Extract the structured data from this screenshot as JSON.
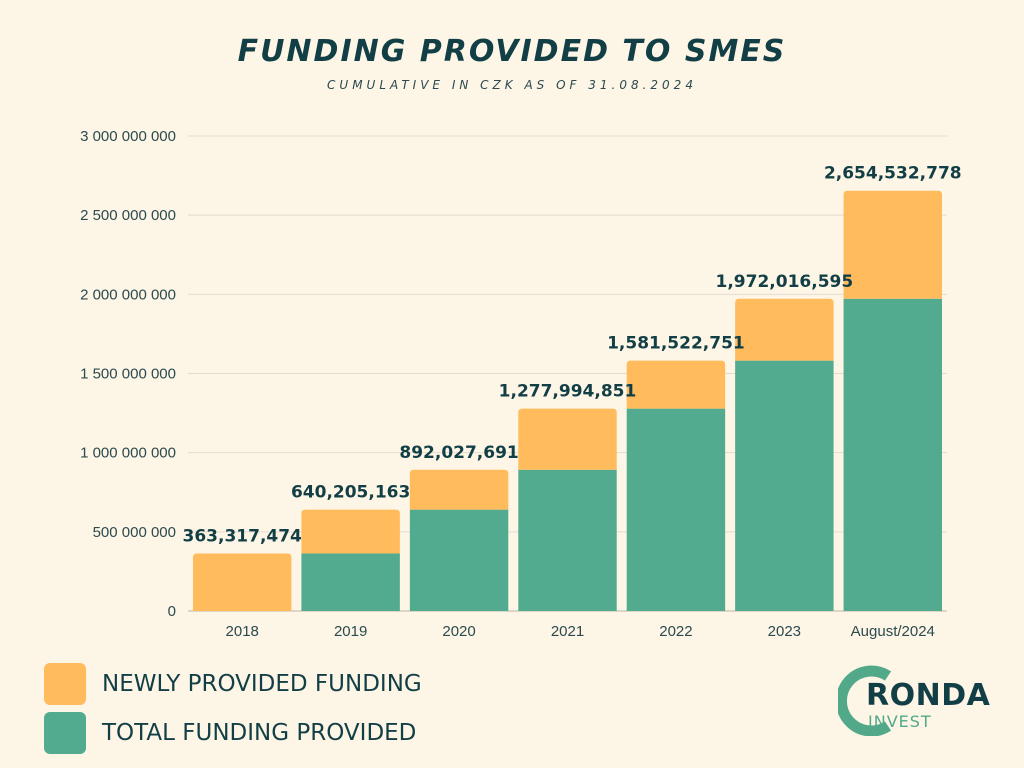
{
  "chart_data": {
    "type": "bar",
    "stacked": true,
    "title": "FUNDING PROVIDED TO SMES",
    "subtitle": "CUMULATIVE IN CZK AS OF 31.08.2024",
    "categories": [
      "2018",
      "2019",
      "2020",
      "2021",
      "2022",
      "2023",
      "August/2024"
    ],
    "series": [
      {
        "name": "TOTAL FUNDING PROVIDED",
        "color": "#52ab8e",
        "values": [
          0,
          363317474,
          640205163,
          892027691,
          1277994851,
          1581522751,
          1972016595
        ]
      },
      {
        "name": "NEWLY PROVIDED FUNDING",
        "color": "#ffbb5c",
        "values": [
          363317474,
          276887689,
          251822528,
          385967160,
          303527900,
          390493844,
          682516183
        ]
      }
    ],
    "total_labels": [
      "363,317,474",
      "640,205,163",
      "892,027,691",
      "1,277,994,851",
      "1,581,522,751",
      "1,972,016,595",
      "2,654,532,778"
    ],
    "yticks": [
      0,
      500000000,
      1000000000,
      1500000000,
      2000000000,
      2500000000,
      3000000000
    ],
    "ytick_labels": [
      "0",
      "500 000 000",
      "1 000 000 000",
      "1 500 000 000",
      "2 000 000 000",
      "2 500 000 000",
      "3 000 000 000"
    ],
    "ylim": [
      0,
      3000000000
    ],
    "grid": true,
    "legend_position": "bottom-left"
  },
  "legend": [
    {
      "label": "NEWLY PROVIDED FUNDING",
      "color": "#ffbb5c"
    },
    {
      "label": "TOTAL FUNDING PROVIDED",
      "color": "#52ab8e"
    }
  ],
  "logo": {
    "name": "RONDA",
    "sub": "INVEST",
    "colors": {
      "ring": "#52a98a",
      "text": "#123f46"
    }
  },
  "colors": {
    "background": "#fdf5e6",
    "title": "#123f46",
    "axis_text": "#2c4a4f",
    "grid": "#e2dccf"
  }
}
